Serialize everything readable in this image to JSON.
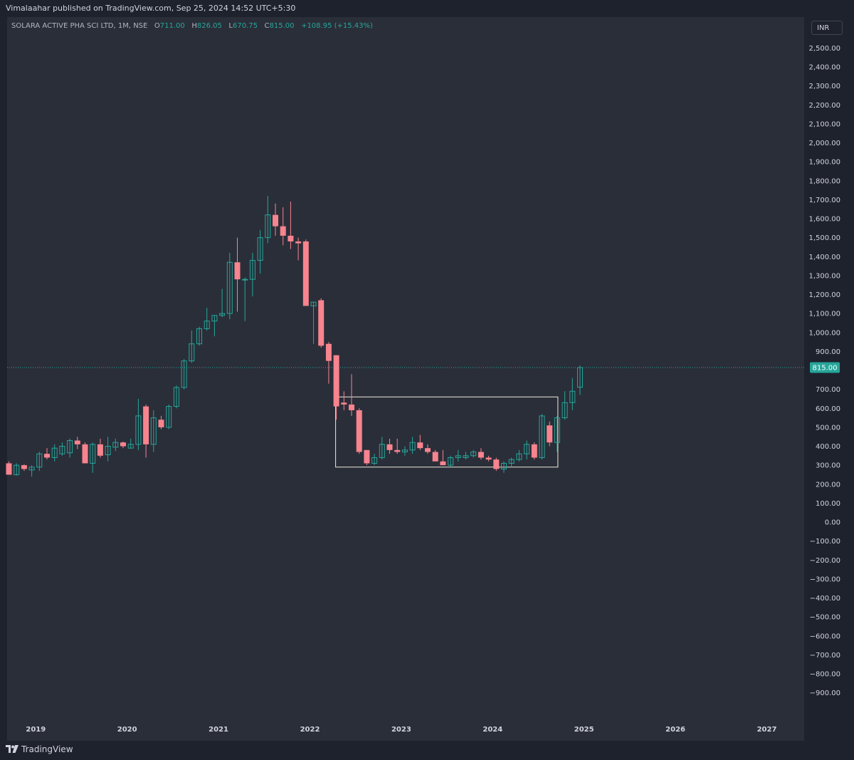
{
  "header": {
    "published": "Vimalaahar published on TradingView.com, Sep 25, 2024 14:52 UTC+5:30"
  },
  "legend": {
    "symbol": "SOLARA ACTIVE PHA SCI LTD, 1M, NSE",
    "o_label": "O",
    "o_value": "711.00",
    "h_label": "H",
    "h_value": "826.05",
    "l_label": "L",
    "l_value": "670.75",
    "c_label": "C",
    "c_value": "815.00",
    "change": "+108.95 (+15.43%)"
  },
  "currency": "INR",
  "brand": {
    "name": "TradingView"
  },
  "colors": {
    "up": "#26a69a",
    "down": "#f7848e",
    "background": "#2a2e39",
    "box": "#f0ecd8",
    "price_line": "#26a69a"
  },
  "chart_data": {
    "type": "candlestick",
    "interval": "1M",
    "ylim": [
      -960,
      2560
    ],
    "y_ticks": [
      2500,
      2400,
      2300,
      2200,
      2100,
      2000,
      1900,
      1800,
      1700,
      1600,
      1500,
      1400,
      1300,
      1200,
      1100,
      1000,
      900,
      800,
      700,
      600,
      500,
      400,
      300,
      200,
      100,
      0,
      -100,
      -200,
      -300,
      -400,
      -500,
      -600,
      -700,
      -800,
      -900
    ],
    "y_tick_labels": [
      "2,500.00",
      "2,400.00",
      "2,300.00",
      "2,200.00",
      "2,100.00",
      "2,000.00",
      "1,900.00",
      "1,800.00",
      "1,700.00",
      "1,600.00",
      "1,500.00",
      "1,400.00",
      "1,300.00",
      "1,200.00",
      "1,100.00",
      "1,000.00",
      "900.00",
      "",
      "700.00",
      "600.00",
      "500.00",
      "400.00",
      "300.00",
      "200.00",
      "100.00",
      "0.00",
      "−100.00",
      "−200.00",
      "−300.00",
      "−400.00",
      "−500.00",
      "−600.00",
      "−700.00",
      "−800.00",
      "−900.00"
    ],
    "x_labels": [
      {
        "label": "2019",
        "index": 4
      },
      {
        "label": "2020",
        "index": 16
      },
      {
        "label": "2021",
        "index": 28
      },
      {
        "label": "2022",
        "index": 40
      },
      {
        "label": "2023",
        "index": 52
      },
      {
        "label": "2024",
        "index": 64
      },
      {
        "label": "2025",
        "index": 76
      },
      {
        "label": "2026",
        "index": 88
      },
      {
        "label": "2027",
        "index": 100
      }
    ],
    "last_price": 815.0,
    "last_price_label": "815.00",
    "box": {
      "start_index": 43,
      "end_index": 72,
      "top": 660,
      "bottom": 290
    },
    "candles": [
      {
        "o": 310,
        "h": 320,
        "l": 250,
        "c": 250
      },
      {
        "o": 250,
        "h": 310,
        "l": 245,
        "c": 300
      },
      {
        "o": 300,
        "h": 305,
        "l": 270,
        "c": 280
      },
      {
        "o": 275,
        "h": 300,
        "l": 240,
        "c": 290
      },
      {
        "o": 290,
        "h": 370,
        "l": 270,
        "c": 360
      },
      {
        "o": 360,
        "h": 390,
        "l": 330,
        "c": 340
      },
      {
        "o": 340,
        "h": 410,
        "l": 320,
        "c": 390
      },
      {
        "o": 360,
        "h": 420,
        "l": 350,
        "c": 400
      },
      {
        "o": 365,
        "h": 440,
        "l": 340,
        "c": 430
      },
      {
        "o": 430,
        "h": 450,
        "l": 385,
        "c": 410
      },
      {
        "o": 410,
        "h": 420,
        "l": 310,
        "c": 310
      },
      {
        "o": 310,
        "h": 420,
        "l": 260,
        "c": 410
      },
      {
        "o": 410,
        "h": 440,
        "l": 340,
        "c": 350
      },
      {
        "o": 355,
        "h": 450,
        "l": 320,
        "c": 400
      },
      {
        "o": 395,
        "h": 440,
        "l": 375,
        "c": 420
      },
      {
        "o": 420,
        "h": 425,
        "l": 390,
        "c": 400
      },
      {
        "o": 390,
        "h": 440,
        "l": 390,
        "c": 410
      },
      {
        "o": 410,
        "h": 650,
        "l": 380,
        "c": 560
      },
      {
        "o": 610,
        "h": 620,
        "l": 340,
        "c": 410
      },
      {
        "o": 410,
        "h": 590,
        "l": 370,
        "c": 550
      },
      {
        "o": 540,
        "h": 560,
        "l": 490,
        "c": 500
      },
      {
        "o": 500,
        "h": 620,
        "l": 490,
        "c": 610
      },
      {
        "o": 610,
        "h": 720,
        "l": 600,
        "c": 710
      },
      {
        "o": 710,
        "h": 860,
        "l": 700,
        "c": 850
      },
      {
        "o": 850,
        "h": 1010,
        "l": 840,
        "c": 940
      },
      {
        "o": 940,
        "h": 1030,
        "l": 930,
        "c": 1020
      },
      {
        "o": 1020,
        "h": 1130,
        "l": 1010,
        "c": 1060
      },
      {
        "o": 1060,
        "h": 1090,
        "l": 980,
        "c": 1090
      },
      {
        "o": 1090,
        "h": 1230,
        "l": 1080,
        "c": 1100
      },
      {
        "o": 1100,
        "h": 1420,
        "l": 1070,
        "c": 1370
      },
      {
        "o": 1370,
        "h": 1500,
        "l": 1110,
        "c": 1280
      },
      {
        "o": 1280,
        "h": 1290,
        "l": 1060,
        "c": 1280
      },
      {
        "o": 1280,
        "h": 1420,
        "l": 1190,
        "c": 1380
      },
      {
        "o": 1380,
        "h": 1540,
        "l": 1310,
        "c": 1500
      },
      {
        "o": 1500,
        "h": 1720,
        "l": 1470,
        "c": 1620
      },
      {
        "o": 1620,
        "h": 1680,
        "l": 1510,
        "c": 1560
      },
      {
        "o": 1560,
        "h": 1660,
        "l": 1460,
        "c": 1510
      },
      {
        "o": 1510,
        "h": 1690,
        "l": 1440,
        "c": 1480
      },
      {
        "o": 1480,
        "h": 1500,
        "l": 1380,
        "c": 1470
      },
      {
        "o": 1480,
        "h": 1490,
        "l": 1160,
        "c": 1140
      },
      {
        "o": 1140,
        "h": 1160,
        "l": 940,
        "c": 1160
      },
      {
        "o": 1170,
        "h": 1180,
        "l": 920,
        "c": 930
      },
      {
        "o": 940,
        "h": 950,
        "l": 730,
        "c": 850
      },
      {
        "o": 880,
        "h": 880,
        "l": 540,
        "c": 610
      },
      {
        "o": 630,
        "h": 690,
        "l": 590,
        "c": 620
      },
      {
        "o": 620,
        "h": 780,
        "l": 560,
        "c": 590
      },
      {
        "o": 590,
        "h": 600,
        "l": 360,
        "c": 370
      },
      {
        "o": 380,
        "h": 380,
        "l": 300,
        "c": 310
      },
      {
        "o": 310,
        "h": 360,
        "l": 300,
        "c": 340
      },
      {
        "o": 340,
        "h": 450,
        "l": 330,
        "c": 410
      },
      {
        "o": 410,
        "h": 440,
        "l": 360,
        "c": 380
      },
      {
        "o": 380,
        "h": 440,
        "l": 360,
        "c": 370
      },
      {
        "o": 370,
        "h": 400,
        "l": 350,
        "c": 380
      },
      {
        "o": 380,
        "h": 450,
        "l": 360,
        "c": 420
      },
      {
        "o": 420,
        "h": 460,
        "l": 380,
        "c": 390
      },
      {
        "o": 390,
        "h": 410,
        "l": 360,
        "c": 370
      },
      {
        "o": 370,
        "h": 380,
        "l": 330,
        "c": 320
      },
      {
        "o": 320,
        "h": 380,
        "l": 300,
        "c": 300
      },
      {
        "o": 300,
        "h": 350,
        "l": 290,
        "c": 340
      },
      {
        "o": 340,
        "h": 380,
        "l": 320,
        "c": 350
      },
      {
        "o": 340,
        "h": 370,
        "l": 330,
        "c": 350
      },
      {
        "o": 350,
        "h": 380,
        "l": 340,
        "c": 370
      },
      {
        "o": 370,
        "h": 390,
        "l": 330,
        "c": 340
      },
      {
        "o": 340,
        "h": 350,
        "l": 320,
        "c": 330
      },
      {
        "o": 330,
        "h": 340,
        "l": 270,
        "c": 280
      },
      {
        "o": 280,
        "h": 320,
        "l": 260,
        "c": 310
      },
      {
        "o": 310,
        "h": 340,
        "l": 290,
        "c": 330
      },
      {
        "o": 330,
        "h": 380,
        "l": 320,
        "c": 360
      },
      {
        "o": 360,
        "h": 430,
        "l": 330,
        "c": 410
      },
      {
        "o": 410,
        "h": 420,
        "l": 330,
        "c": 340
      },
      {
        "o": 340,
        "h": 570,
        "l": 330,
        "c": 560
      },
      {
        "o": 510,
        "h": 530,
        "l": 400,
        "c": 420
      },
      {
        "o": 420,
        "h": 560,
        "l": 370,
        "c": 550
      },
      {
        "o": 550,
        "h": 690,
        "l": 540,
        "c": 630
      },
      {
        "o": 630,
        "h": 760,
        "l": 590,
        "c": 690
      },
      {
        "o": 711,
        "h": 826.05,
        "l": 670.75,
        "c": 815
      }
    ]
  }
}
